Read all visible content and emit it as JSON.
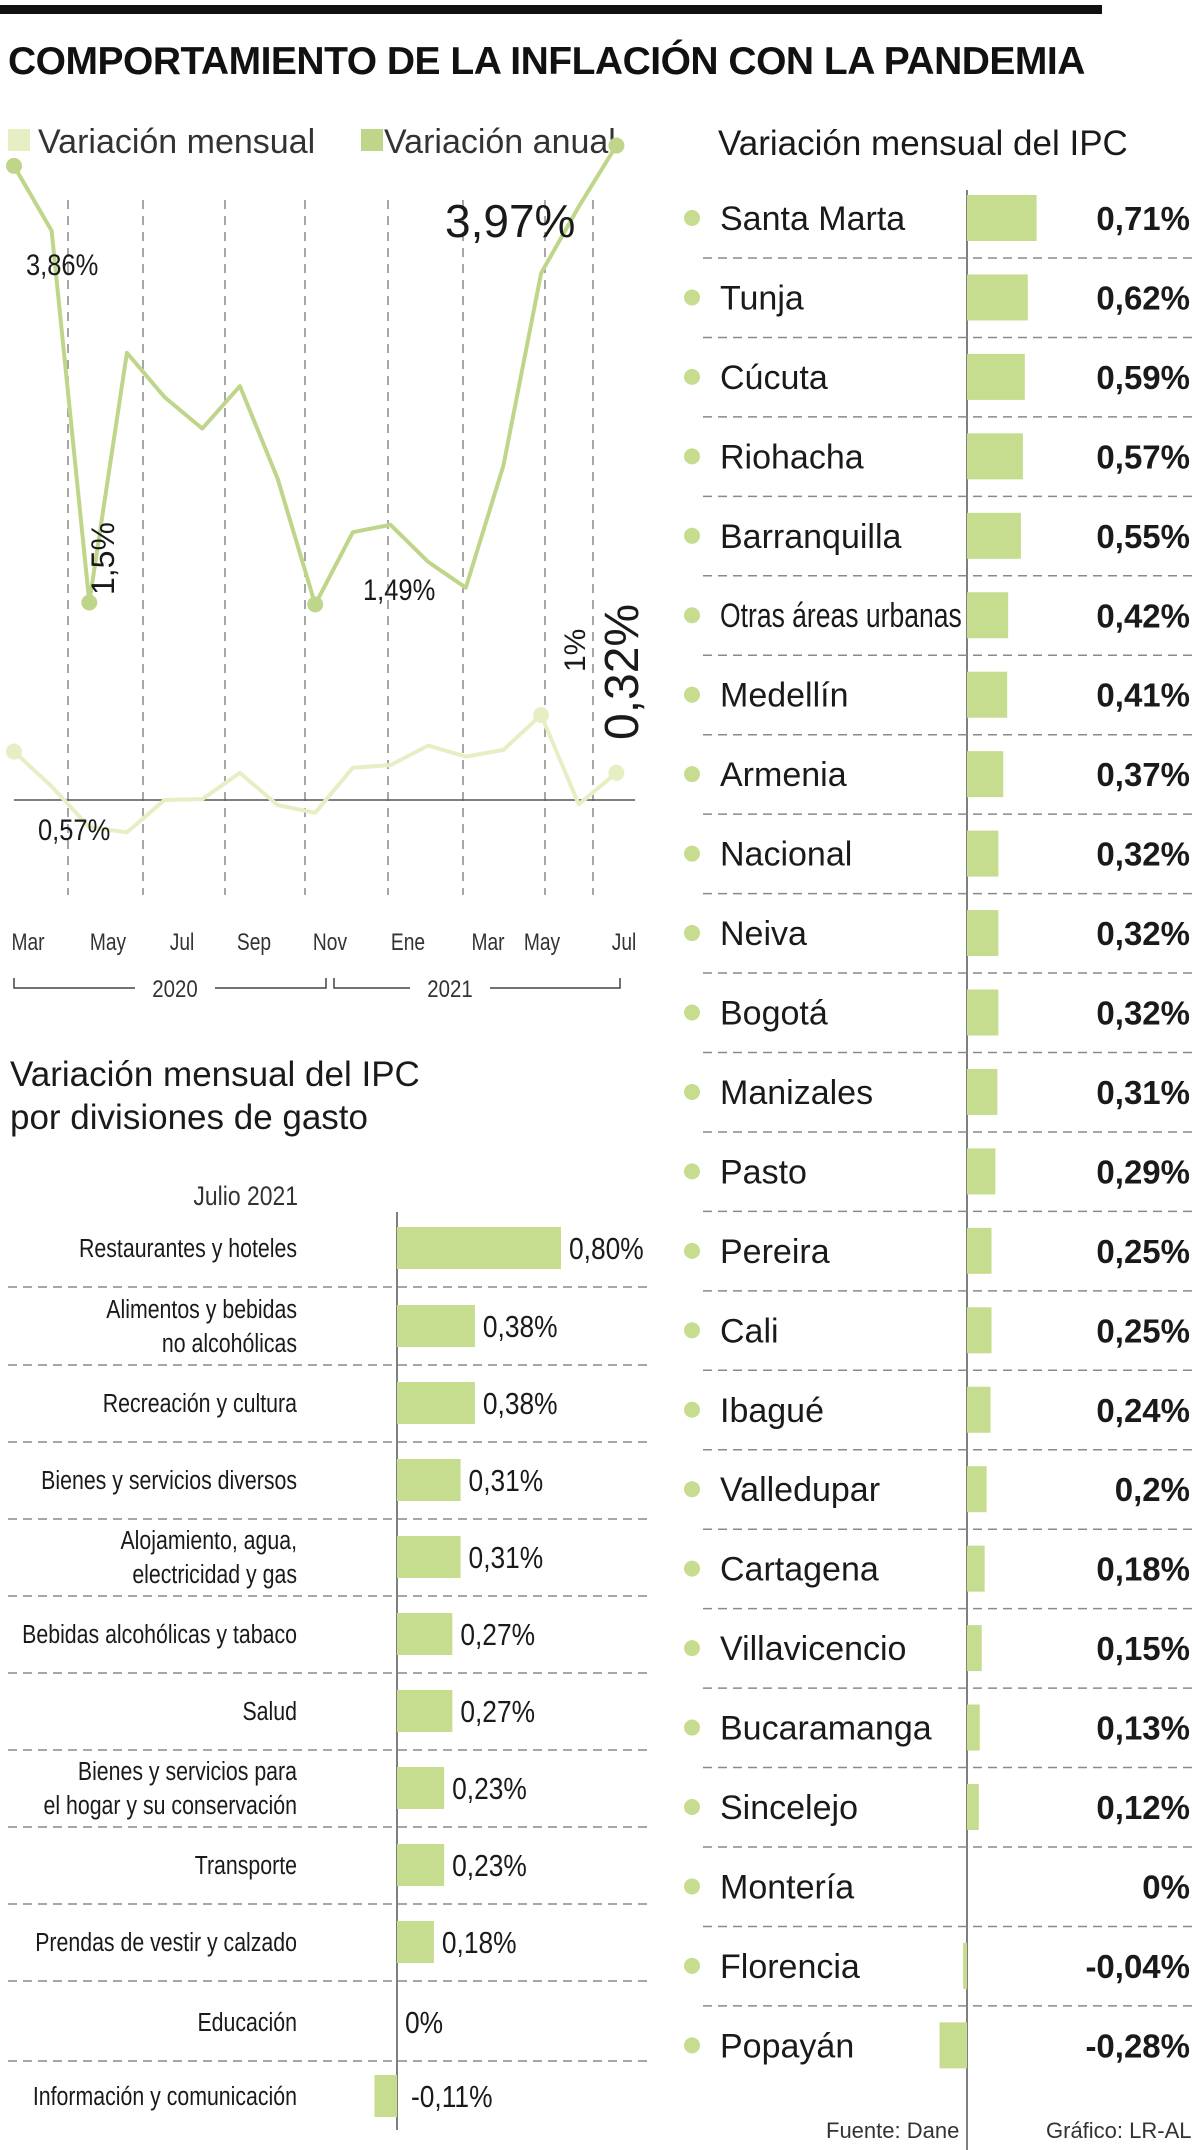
{
  "title": "COMPORTAMIENTO DE LA INFLACIÓN CON LA PANDEMIA",
  "colors": {
    "annual": "#bfd68a",
    "monthly": "#e6efc4",
    "bar": "#c6dc8e",
    "text": "#1a1a1a",
    "grid": "#8a8a8a"
  },
  "footer": {
    "source": "Fuente: Dane",
    "credit": "Gráfico: LR-AL"
  },
  "chart_data": [
    {
      "type": "line",
      "title": "",
      "legend": [
        "Variación mensual",
        "Variación anual"
      ],
      "x": [
        "Mar 2020",
        "Abr 2020",
        "May 2020",
        "Jun 2020",
        "Jul 2020",
        "Ago 2020",
        "Sep 2020",
        "Oct 2020",
        "Nov 2020",
        "Dic 2020",
        "Ene 2021",
        "Feb 2021",
        "Mar 2021",
        "Abr 2021",
        "May 2021",
        "Jun 2021",
        "Jul 2021"
      ],
      "tick_labels": [
        "Mar",
        "May",
        "Jul",
        "Sep",
        "Nov",
        "Ene",
        "Mar",
        "May",
        "Jul"
      ],
      "tick_indices": [
        0,
        2,
        4,
        6,
        8,
        10,
        12,
        14,
        16
      ],
      "year_labels": [
        "2020",
        "2021"
      ],
      "series": [
        {
          "name": "Variación anual",
          "values": [
            3.86,
            3.51,
            1.5,
            2.85,
            2.61,
            2.44,
            2.67,
            2.17,
            1.49,
            1.88,
            1.92,
            1.72,
            1.58,
            2.24,
            3.28,
            3.64,
            3.97
          ]
        },
        {
          "name": "Variación mensual",
          "values": [
            0.57,
            0.16,
            -0.32,
            -0.38,
            0.0,
            0.01,
            0.32,
            -0.06,
            -0.15,
            0.38,
            0.41,
            0.64,
            0.51,
            0.59,
            1.0,
            -0.05,
            0.32
          ]
        }
      ],
      "annotations": {
        "annual_first": "3,86%",
        "annual_min1": "1,5%",
        "annual_min2": "1,49%",
        "annual_last": "3,97%",
        "monthly_first": "0,57%",
        "monthly_peak": "1%",
        "monthly_last": "0,32%"
      }
    },
    {
      "type": "bar",
      "title": "Variación mensual del IPC por divisiones de gasto",
      "title_lines": [
        "Variación mensual del IPC",
        "por divisiones de gasto"
      ],
      "subtitle": "Julio 2021",
      "categories": [
        "Restaurantes y hoteles",
        "Alimentos y bebidas no alcohólicas",
        "Recreación y cultura",
        "Bienes y servicios diversos",
        "Alojamiento, agua, electricidad y gas",
        "Bebidas alcohólicas y tabaco",
        "Salud",
        "Bienes y servicios para el hogar y su conservación",
        "Transporte",
        "Prendas de vestir y calzado",
        "Educación",
        "Información y comunicación"
      ],
      "category_lines": [
        [
          "Restaurantes y hoteles"
        ],
        [
          "Alimentos y bebidas",
          "no alcohólicas"
        ],
        [
          "Recreación y cultura"
        ],
        [
          "Bienes y servicios diversos"
        ],
        [
          "Alojamiento, agua,",
          "electricidad y gas"
        ],
        [
          "Bebidas alcohólicas y tabaco"
        ],
        [
          "Salud"
        ],
        [
          "Bienes y servicios para",
          "el hogar y su conservación"
        ],
        [
          "Transporte"
        ],
        [
          "Prendas de vestir y calzado"
        ],
        [
          "Educación"
        ],
        [
          "Información y comunicación"
        ]
      ],
      "values": [
        0.8,
        0.38,
        0.38,
        0.31,
        0.31,
        0.27,
        0.27,
        0.23,
        0.23,
        0.18,
        0.0,
        -0.11
      ],
      "value_labels": [
        "0,80%",
        "0,38%",
        "0,38%",
        "0,31%",
        "0,31%",
        "0,27%",
        "0,27%",
        "0,23%",
        "0,23%",
        "0,18%",
        "0%",
        "-0,11%"
      ]
    },
    {
      "type": "bar",
      "title": "Variación mensual del IPC",
      "categories": [
        "Santa Marta",
        "Tunja",
        "Cúcuta",
        "Riohacha",
        "Barranquilla",
        "Otras áreas urbanas",
        "Medellín",
        "Armenia",
        "Nacional",
        "Neiva",
        "Bogotá",
        "Manizales",
        "Pasto",
        "Pereira",
        "Cali",
        "Ibagué",
        "Valledupar",
        "Cartagena",
        "Villavicencio",
        "Bucaramanga",
        "Sincelejo",
        "Montería",
        "Florencia",
        "Popayán"
      ],
      "values": [
        0.71,
        0.62,
        0.59,
        0.57,
        0.55,
        0.42,
        0.41,
        0.37,
        0.32,
        0.32,
        0.32,
        0.31,
        0.29,
        0.25,
        0.25,
        0.24,
        0.2,
        0.18,
        0.15,
        0.13,
        0.12,
        0.0,
        -0.04,
        -0.28
      ],
      "value_labels": [
        "0,71%",
        "0,62%",
        "0,59%",
        "0,57%",
        "0,55%",
        "0,42%",
        "0,41%",
        "0,37%",
        "0,32%",
        "0,32%",
        "0,32%",
        "0,31%",
        "0,29%",
        "0,25%",
        "0,25%",
        "0,24%",
        "0,2%",
        "0,18%",
        "0,15%",
        "0,13%",
        "0,12%",
        "0%",
        "-0,04%",
        "-0,28%"
      ]
    }
  ]
}
